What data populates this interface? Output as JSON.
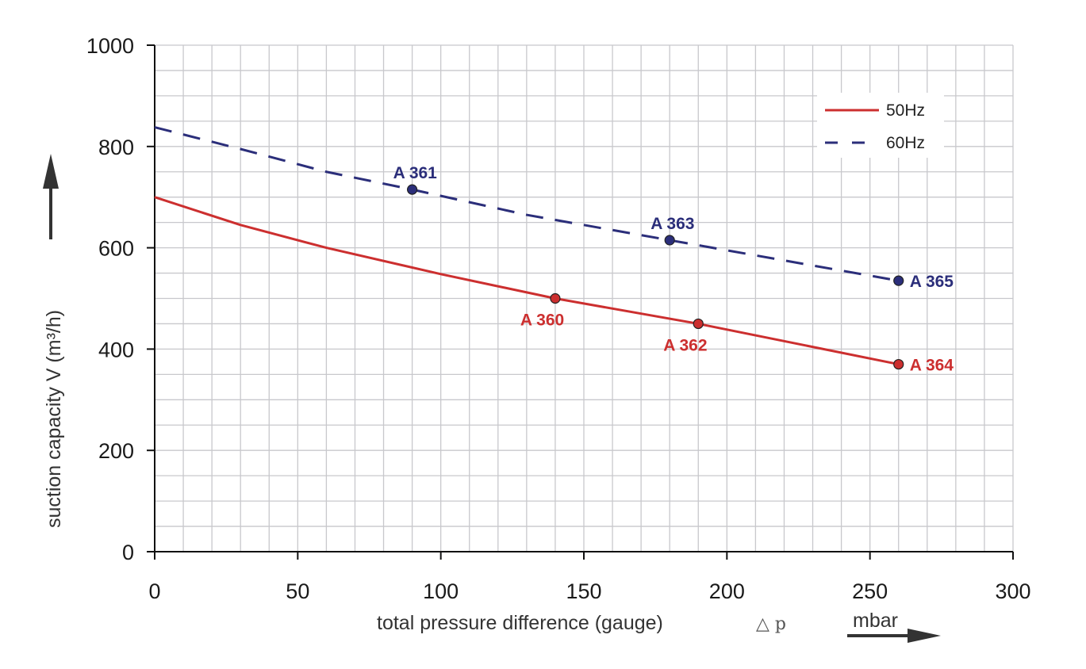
{
  "chart_data": {
    "type": "line",
    "title": "",
    "xlabel": "total pressure difference (gauge)",
    "xlabel_symbol": "△ p",
    "xunit": "mbar",
    "ylabel": "suction capacity V (m³/h)",
    "xlim": [
      0,
      300
    ],
    "ylim": [
      0,
      1000
    ],
    "x_ticks": [
      0,
      50,
      100,
      150,
      200,
      250,
      300
    ],
    "x_tick_labels": [
      "0",
      "50",
      "100",
      "150",
      "200",
      "250",
      "300"
    ],
    "y_ticks": [
      0,
      200,
      400,
      600,
      800,
      1000
    ],
    "y_tick_labels": [
      "0",
      "200",
      "400",
      "600",
      "800",
      "1000"
    ],
    "grid": true,
    "grid_minor_x_step": 10,
    "grid_minor_y_step": 50,
    "legend_position": "top-right",
    "series": [
      {
        "name": "50Hz",
        "color": "#cc2f2f",
        "style": "solid",
        "x": [
          0,
          30,
          60,
          100,
          140,
          190,
          260
        ],
        "y": [
          700,
          645,
          600,
          548,
          500,
          450,
          370
        ],
        "markers": [
          {
            "label": "A 360",
            "x": 140,
            "y": 500,
            "label_pos": "below-left"
          },
          {
            "label": "A 362",
            "x": 190,
            "y": 450,
            "label_pos": "below-left"
          },
          {
            "label": "A 364",
            "x": 260,
            "y": 370,
            "label_pos": "right"
          }
        ]
      },
      {
        "name": "60Hz",
        "color": "#2b2e7a",
        "style": "dashed",
        "x": [
          0,
          30,
          60,
          90,
          130,
          180,
          260
        ],
        "y": [
          838,
          795,
          750,
          715,
          665,
          615,
          535
        ],
        "markers": [
          {
            "label": "A 361",
            "x": 90,
            "y": 715,
            "label_pos": "above-left"
          },
          {
            "label": "A 363",
            "x": 180,
            "y": 615,
            "label_pos": "above-left"
          },
          {
            "label": "A 365",
            "x": 260,
            "y": 535,
            "label_pos": "right"
          }
        ]
      }
    ]
  }
}
